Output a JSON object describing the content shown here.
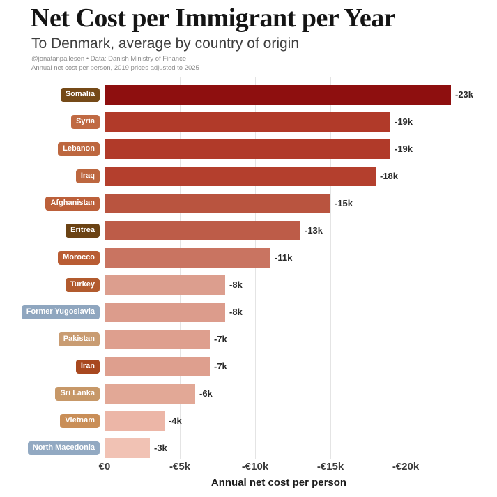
{
  "header": {
    "title": "Net Cost per Immigrant per Year",
    "subtitle": "To Denmark, average by country of origin",
    "credit": "@jonatanpallesen • Data: Danish Ministry of Finance",
    "note": "Annual net cost per person, 2019 prices adjusted to 2025"
  },
  "chart_data": {
    "type": "bar",
    "orientation": "horizontal",
    "title": "Net Cost per Immigrant per Year",
    "subtitle": "To Denmark, average by country of origin",
    "xlabel": "Annual net cost per person",
    "x_tick_labels": [
      "€0",
      "-€5k",
      "-€10k",
      "-€15k",
      "-€20k"
    ],
    "x_tick_values": [
      0,
      -5000,
      -10000,
      -15000,
      -20000
    ],
    "xlim": [
      0,
      -25000
    ],
    "grid": true,
    "legend": false,
    "categories": [
      "Somalia",
      "Syria",
      "Lebanon",
      "Iraq",
      "Afghanistan",
      "Eritrea",
      "Morocco",
      "Turkey",
      "Former Yugoslavia",
      "Pakistan",
      "Iran",
      "Sri Lanka",
      "Vietnam",
      "North Macedonia"
    ],
    "values_eur_per_year": [
      -23000,
      -19000,
      -19000,
      -18000,
      -15000,
      -13000,
      -11000,
      -8000,
      -8000,
      -7000,
      -7000,
      -6000,
      -4000,
      -3000
    ],
    "bar_value_labels": [
      "-23k",
      "-19k",
      "-19k",
      "-18k",
      "-15k",
      "-13k",
      "-11k",
      "-8k",
      "-8k",
      "-7k",
      "-7k",
      "-6k",
      "-4k",
      "-3k"
    ],
    "bar_colors": [
      "#8e0f0f",
      "#b13a29",
      "#b13a29",
      "#b43f2d",
      "#b9543f",
      "#bd5c48",
      "#c97461",
      "#dc9e8e",
      "#dc9c8c",
      "#de9f8e",
      "#de9f8e",
      "#e2a896",
      "#ecb6a7",
      "#f1c2b4"
    ],
    "badge_colors": [
      "#754a18",
      "#c06a43",
      "#bd673f",
      "#bd673f",
      "#bc603a",
      "#6b4314",
      "#b95c33",
      "#b25b2e",
      "#8fa6bf",
      "#c99c72",
      "#a8481f",
      "#c79868",
      "#c98e57",
      "#92a9c2"
    ],
    "badge_text_color": "#ffffff",
    "gridline_color": "#e4e4e4",
    "background_color": "#ffffff"
  }
}
